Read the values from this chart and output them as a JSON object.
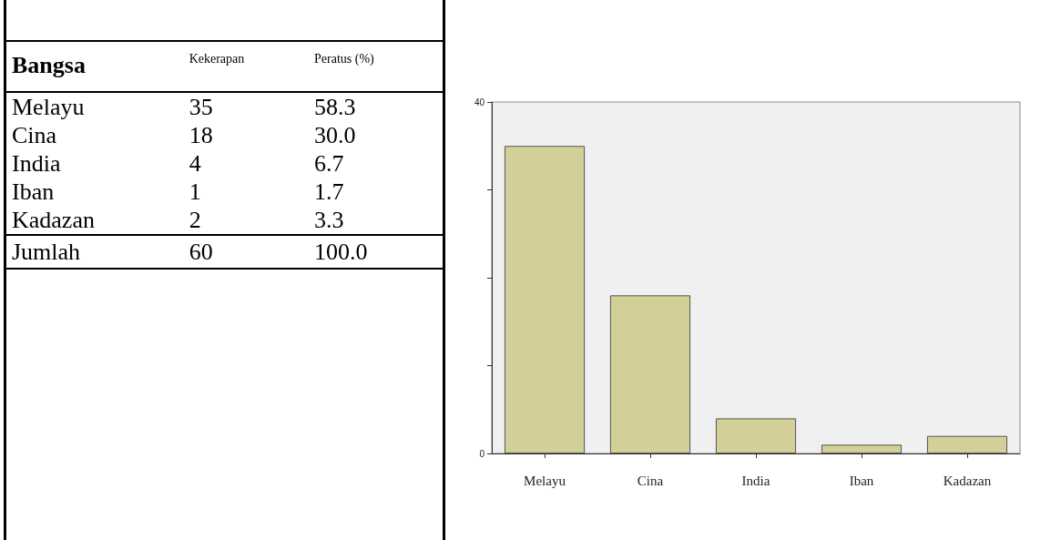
{
  "chart_data": [
    {
      "type": "other",
      "data_labels": true,
      "xlabel": "Bangsa",
      "categories": [
        "Melayu",
        "Cina",
        "India",
        "Iban",
        "Kadazan",
        "Jumlah"
      ],
      "series": [
        {
          "name": "Kekerapan",
          "values": [
            35,
            18,
            4,
            1,
            2,
            60
          ]
        },
        {
          "name": "Peratus (%)",
          "values": [
            58.3,
            30.0,
            6.7,
            1.7,
            3.3,
            100.0
          ],
          "value_labels": [
            "58.3",
            "30.0",
            "6.7",
            "1.7",
            "3.3",
            "100.0"
          ]
        }
      ]
    },
    {
      "type": "bar",
      "categories": [
        "Melayu",
        "Cina",
        "India",
        "Iban",
        "Kadazan"
      ],
      "values": [
        35,
        18,
        4,
        1,
        2
      ],
      "color": "#d3cf98",
      "ylim": [
        0,
        40
      ],
      "yticks": [
        0,
        {
          "value": 10,
          "label": null
        },
        {
          "value": 20,
          "label": null
        },
        {
          "value": 30,
          "label": null
        },
        40
      ],
      "grid": false
    }
  ]
}
